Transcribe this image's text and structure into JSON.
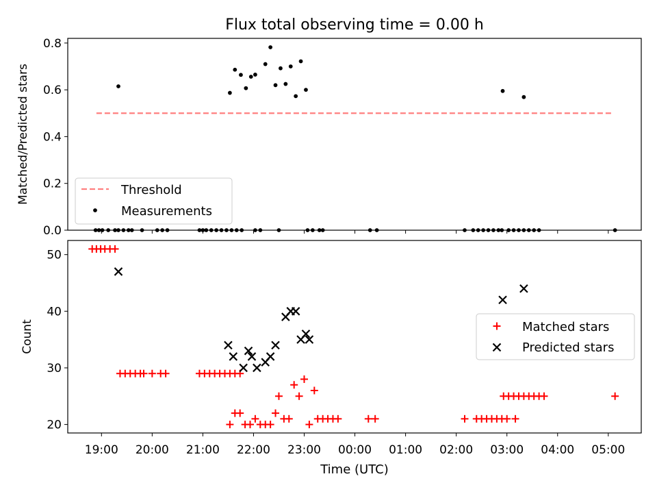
{
  "title": "Flux total observing time = 0.00 h",
  "colors": {
    "threshold": "#ff7f7f",
    "measurement": "#000000",
    "matched": "#ff0000",
    "predicted": "#000000"
  },
  "chart_data": [
    {
      "type": "scatter",
      "ylabel": "Matched/Predicted stars",
      "ylim": [
        0,
        0.82
      ],
      "yticks": [
        "0.0",
        "0.2",
        "0.4",
        "0.6",
        "0.8"
      ],
      "legend_placement": "lower-left",
      "legend": [
        "Threshold",
        "Measurements"
      ],
      "threshold": {
        "name": "Threshold",
        "value": 0.5,
        "x_start": "18:54",
        "x_end": "05:06"
      },
      "series": [
        {
          "name": "Measurements",
          "points": [
            [
              "18:53",
              0
            ],
            [
              "18:57",
              0
            ],
            [
              "19:01",
              0
            ],
            [
              "19:08",
              0
            ],
            [
              "19:16",
              0
            ],
            [
              "19:20",
              0
            ],
            [
              "19:26",
              0
            ],
            [
              "19:32",
              0
            ],
            [
              "19:36",
              0
            ],
            [
              "19:48",
              0
            ],
            [
              "20:06",
              0
            ],
            [
              "20:12",
              0
            ],
            [
              "20:18",
              0
            ],
            [
              "20:56",
              0
            ],
            [
              "21:00",
              0
            ],
            [
              "21:04",
              0
            ],
            [
              "21:10",
              0
            ],
            [
              "21:16",
              0
            ],
            [
              "21:22",
              0
            ],
            [
              "21:28",
              0
            ],
            [
              "21:34",
              0
            ],
            [
              "21:40",
              0
            ],
            [
              "21:46",
              0
            ],
            [
              "22:02",
              0
            ],
            [
              "22:08",
              0
            ],
            [
              "22:30",
              0
            ],
            [
              "23:04",
              0
            ],
            [
              "23:10",
              0
            ],
            [
              "23:18",
              0
            ],
            [
              "23:22",
              0
            ],
            [
              "00:18",
              0
            ],
            [
              "00:26",
              0
            ],
            [
              "02:10",
              0
            ],
            [
              "02:20",
              0
            ],
            [
              "02:26",
              0
            ],
            [
              "02:32",
              0
            ],
            [
              "02:38",
              0
            ],
            [
              "02:44",
              0
            ],
            [
              "02:50",
              0
            ],
            [
              "02:54",
              0
            ],
            [
              "03:02",
              0
            ],
            [
              "03:08",
              0
            ],
            [
              "03:14",
              0
            ],
            [
              "03:20",
              0
            ],
            [
              "03:26",
              0
            ],
            [
              "03:32",
              0
            ],
            [
              "03:38",
              0
            ],
            [
              "05:08",
              0
            ],
            [
              "19:20",
              0.615
            ],
            [
              "21:32",
              0.587
            ],
            [
              "21:38",
              0.686
            ],
            [
              "21:45",
              0.664
            ],
            [
              "21:51",
              0.607
            ],
            [
              "21:57",
              0.656
            ],
            [
              "22:02",
              0.665
            ],
            [
              "22:14",
              0.71
            ],
            [
              "22:20",
              0.782
            ],
            [
              "22:26",
              0.62
            ],
            [
              "22:32",
              0.692
            ],
            [
              "22:38",
              0.625
            ],
            [
              "22:44",
              0.7
            ],
            [
              "22:50",
              0.573
            ],
            [
              "22:56",
              0.722
            ],
            [
              "23:02",
              0.6
            ],
            [
              "02:55",
              0.595
            ],
            [
              "03:20",
              0.569
            ]
          ]
        }
      ]
    },
    {
      "type": "scatter",
      "xlabel": "Time (UTC)",
      "ylabel": "Count",
      "ylim": [
        18.5,
        52.5
      ],
      "yticks": [
        "20",
        "30",
        "40",
        "50"
      ],
      "xticks": [
        "19:00",
        "20:00",
        "21:00",
        "22:00",
        "23:00",
        "00:00",
        "01:00",
        "02:00",
        "03:00",
        "04:00",
        "05:00"
      ],
      "legend_placement": "center-right",
      "legend": [
        "Matched stars",
        "Predicted stars"
      ],
      "series": [
        {
          "name": "Matched stars",
          "points": [
            [
              "18:49",
              51
            ],
            [
              "18:54",
              51
            ],
            [
              "18:59",
              51
            ],
            [
              "19:04",
              51
            ],
            [
              "19:10",
              51
            ],
            [
              "19:16",
              51
            ],
            [
              "19:22",
              29
            ],
            [
              "19:28",
              29
            ],
            [
              "19:34",
              29
            ],
            [
              "19:40",
              29
            ],
            [
              "19:46",
              29
            ],
            [
              "19:50",
              29
            ],
            [
              "20:00",
              29
            ],
            [
              "20:10",
              29
            ],
            [
              "20:16",
              29
            ],
            [
              "20:56",
              29
            ],
            [
              "21:02",
              29
            ],
            [
              "21:08",
              29
            ],
            [
              "21:14",
              29
            ],
            [
              "21:20",
              29
            ],
            [
              "21:26",
              29
            ],
            [
              "21:32",
              29
            ],
            [
              "21:38",
              29
            ],
            [
              "21:44",
              29
            ],
            [
              "21:32",
              20
            ],
            [
              "21:38",
              22
            ],
            [
              "21:44",
              22
            ],
            [
              "21:50",
              20
            ],
            [
              "21:56",
              20
            ],
            [
              "22:02",
              21
            ],
            [
              "22:08",
              20
            ],
            [
              "22:14",
              20
            ],
            [
              "22:20",
              20
            ],
            [
              "22:26",
              22
            ],
            [
              "22:30",
              25
            ],
            [
              "22:36",
              21
            ],
            [
              "22:42",
              21
            ],
            [
              "22:48",
              27
            ],
            [
              "22:54",
              25
            ],
            [
              "23:00",
              28
            ],
            [
              "23:06",
              20
            ],
            [
              "23:12",
              26
            ],
            [
              "23:16",
              21
            ],
            [
              "23:22",
              21
            ],
            [
              "23:28",
              21
            ],
            [
              "23:34",
              21
            ],
            [
              "23:40",
              21
            ],
            [
              "00:16",
              21
            ],
            [
              "00:24",
              21
            ],
            [
              "02:10",
              21
            ],
            [
              "02:24",
              21
            ],
            [
              "02:30",
              21
            ],
            [
              "02:36",
              21
            ],
            [
              "02:42",
              21
            ],
            [
              "02:48",
              21
            ],
            [
              "02:54",
              21
            ],
            [
              "03:00",
              21
            ],
            [
              "03:10",
              21
            ],
            [
              "02:56",
              25
            ],
            [
              "03:02",
              25
            ],
            [
              "03:08",
              25
            ],
            [
              "03:14",
              25
            ],
            [
              "03:20",
              25
            ],
            [
              "03:26",
              25
            ],
            [
              "03:32",
              25
            ],
            [
              "03:38",
              25
            ],
            [
              "03:44",
              25
            ],
            [
              "05:08",
              25
            ]
          ]
        },
        {
          "name": "Predicted stars",
          "points": [
            [
              "19:20",
              47
            ],
            [
              "21:30",
              34
            ],
            [
              "21:36",
              32
            ],
            [
              "21:48",
              30
            ],
            [
              "21:54",
              33
            ],
            [
              "21:58",
              32
            ],
            [
              "22:04",
              30
            ],
            [
              "22:14",
              31
            ],
            [
              "22:20",
              32
            ],
            [
              "22:26",
              34
            ],
            [
              "22:38",
              39
            ],
            [
              "22:44",
              40
            ],
            [
              "22:50",
              40
            ],
            [
              "22:56",
              35
            ],
            [
              "23:02",
              36
            ],
            [
              "23:06",
              35
            ],
            [
              "02:55",
              42
            ],
            [
              "03:20",
              44
            ]
          ]
        }
      ]
    }
  ]
}
